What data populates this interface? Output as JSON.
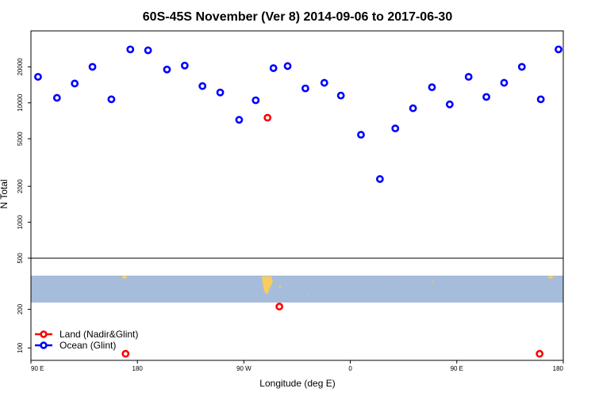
{
  "chart_data": {
    "type": "scatter",
    "title": "60S-45S November (Ver 8)   2014-09-06 to 2017-06-30",
    "xlabel": "Longitude (deg E)",
    "ylabel": "N Total",
    "x_ticks": [
      {
        "value": 90,
        "label": "90 E"
      },
      {
        "value": 180,
        "label": "180"
      },
      {
        "value": 270,
        "label": "90 W"
      },
      {
        "value": 360,
        "label": "0"
      },
      {
        "value": 450,
        "label": "90 E"
      },
      {
        "value": 540,
        "label": "180"
      }
    ],
    "xlim": [
      90,
      540
    ],
    "y_scale": "log",
    "ylim_upper": [
      500,
      40000
    ],
    "ylim_lower": [
      80,
      500
    ],
    "y_ticks": [
      100,
      200,
      500,
      1000,
      2000,
      5000,
      10000,
      20000
    ],
    "legend_position": "bottom-left",
    "series": [
      {
        "name": "Land (Nadir&Glint)",
        "color": "#ff0000",
        "points": [
          {
            "x": 290,
            "y": 7500
          },
          {
            "x": 300,
            "y": 210
          },
          {
            "x": 170,
            "y": 90
          },
          {
            "x": 520,
            "y": 90
          }
        ]
      },
      {
        "name": "Ocean (Glint)",
        "color": "#0000ff",
        "points": [
          {
            "x": 96,
            "y": 16500
          },
          {
            "x": 112,
            "y": 11000
          },
          {
            "x": 127,
            "y": 14500
          },
          {
            "x": 142,
            "y": 20000
          },
          {
            "x": 158,
            "y": 10700
          },
          {
            "x": 174,
            "y": 28000
          },
          {
            "x": 189,
            "y": 27500
          },
          {
            "x": 205,
            "y": 19000
          },
          {
            "x": 220,
            "y": 20500
          },
          {
            "x": 235,
            "y": 13800
          },
          {
            "x": 250,
            "y": 12200
          },
          {
            "x": 266,
            "y": 7200
          },
          {
            "x": 280,
            "y": 10500
          },
          {
            "x": 295,
            "y": 19500
          },
          {
            "x": 307,
            "y": 20300
          },
          {
            "x": 322,
            "y": 13200
          },
          {
            "x": 338,
            "y": 14700
          },
          {
            "x": 352,
            "y": 11500
          },
          {
            "x": 369,
            "y": 5400
          },
          {
            "x": 385,
            "y": 2300
          },
          {
            "x": 398,
            "y": 6100
          },
          {
            "x": 413,
            "y": 9000
          },
          {
            "x": 429,
            "y": 13500
          },
          {
            "x": 444,
            "y": 9700
          },
          {
            "x": 460,
            "y": 16500
          },
          {
            "x": 475,
            "y": 11200
          },
          {
            "x": 490,
            "y": 14700
          },
          {
            "x": 505,
            "y": 20000
          },
          {
            "x": 521,
            "y": 10700
          },
          {
            "x": 536,
            "y": 28000
          }
        ]
      }
    ],
    "map_strip": {
      "ocean_color": "#a6bcdb",
      "land_color": "#f8cc5e"
    }
  }
}
